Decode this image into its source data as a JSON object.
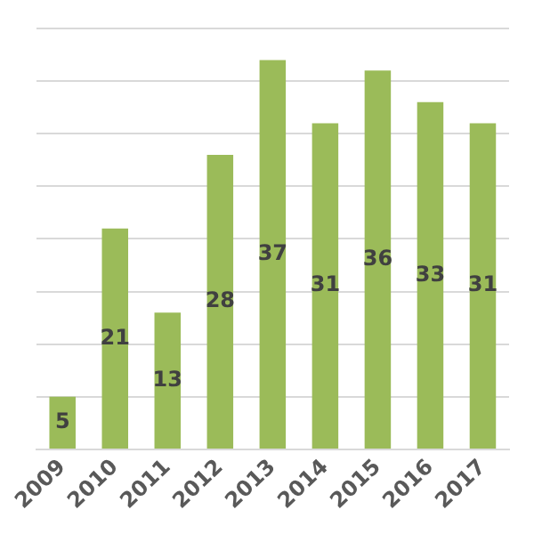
{
  "chart_data": {
    "type": "bar",
    "categories": [
      "2009",
      "2010",
      "2011",
      "2012",
      "2013",
      "2014",
      "2015",
      "2016",
      "2017"
    ],
    "values": [
      5,
      21,
      13,
      28,
      37,
      31,
      36,
      33,
      31
    ],
    "color": "#9bbb59",
    "data_labels": true,
    "grid": "y",
    "tick_labels": "x",
    "ylim": [
      0,
      40
    ],
    "yticks": [
      {
        "value": 0,
        "label": null
      },
      {
        "value": 5,
        "label": null
      },
      {
        "value": 10,
        "label": null
      },
      {
        "value": 15,
        "label": null
      },
      {
        "value": 20,
        "label": null
      },
      {
        "value": 25,
        "label": null
      },
      {
        "value": 30,
        "label": null
      },
      {
        "value": 35,
        "label": null
      },
      {
        "value": 40,
        "label": null
      }
    ]
  }
}
